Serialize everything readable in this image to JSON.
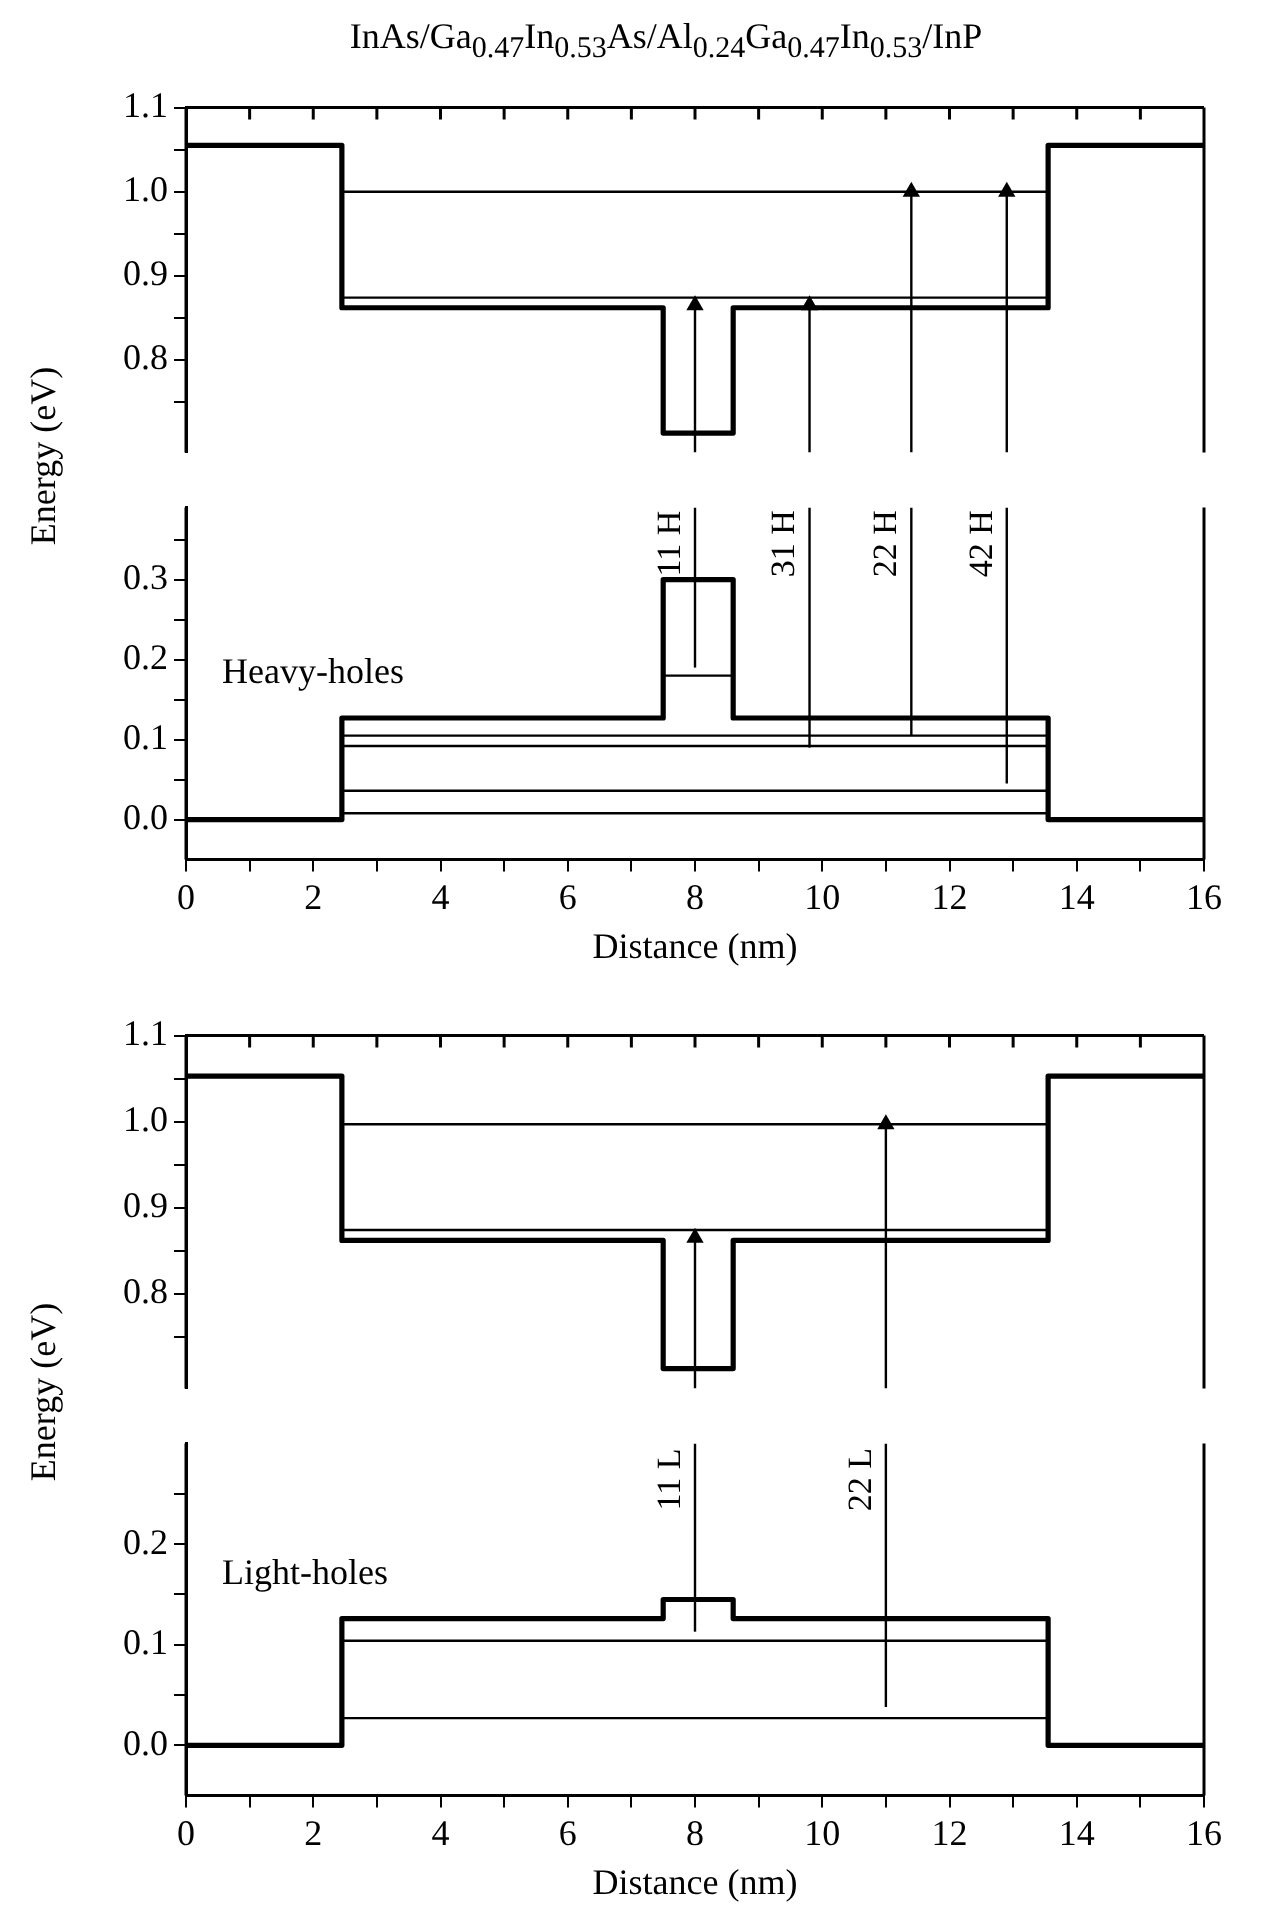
{
  "chart_data": [
    {
      "type": "line",
      "title": "InAs/Ga$_{0.47}$In$_{0.53}$As/Al$_{0.24}$Ga$_{0.47}$In$_{0.53}$/InP",
      "ylabel": "Energy (eV)",
      "xlim": [
        0,
        16
      ],
      "xticks": [
        0,
        {
          "value": 1,
          "label": null
        },
        2,
        {
          "value": 3,
          "label": null
        },
        4,
        {
          "value": 5,
          "label": null
        },
        6,
        {
          "value": 7,
          "label": null
        },
        8,
        {
          "value": 9,
          "label": null
        },
        10,
        {
          "value": 11,
          "label": null
        },
        12,
        {
          "value": 13,
          "label": null
        },
        14,
        {
          "value": 15,
          "label": null
        },
        16
      ],
      "ylim": [
        0.69,
        1.1
      ],
      "yticks": [
        {
          "value": 0.75,
          "label": null
        },
        0.8,
        {
          "value": 0.85,
          "label": null
        },
        0.9,
        {
          "value": 0.95,
          "label": null
        },
        {
          "value": 1,
          "label": "1.0"
        },
        {
          "value": 1.05,
          "label": null
        },
        1.1
      ],
      "tick_labels": "y",
      "grid": false,
      "marker": "none",
      "series": [
        {
          "color": "#000000",
          "x": [
            0,
            2.45,
            2.45,
            7.5,
            7.5,
            8.6,
            8.6,
            13.55,
            13.55,
            16
          ],
          "values": [
            1.055,
            1.055,
            0.862,
            0.862,
            0.713,
            0.713,
            0.862,
            0.862,
            1.055,
            1.055
          ]
        },
        {
          "color": "#000000",
          "x": [
            2.45,
            13.55
          ],
          "values": [
            1.0,
            1.0
          ]
        },
        {
          "color": "#000000",
          "x": [
            2.45,
            13.55
          ],
          "values": [
            0.874,
            0.874
          ]
        },
        {
          "color": "#000000",
          "marker": "triangle",
          "x": [
            8,
            8
          ],
          "values": [
            0.69,
            0.865
          ]
        },
        {
          "color": "#000000",
          "marker": "triangle",
          "x": [
            9.8,
            9.8
          ],
          "values": [
            0.69,
            0.865
          ]
        },
        {
          "color": "#000000",
          "marker": "triangle",
          "x": [
            11.4,
            11.4
          ],
          "values": [
            0.69,
            1.0
          ]
        },
        {
          "color": "#000000",
          "marker": "triangle",
          "x": [
            12.9,
            12.9
          ],
          "values": [
            0.69,
            1.0
          ]
        }
      ]
    },
    {
      "type": "line",
      "xlabel": "Distance (nm)",
      "xlim": [
        0,
        16
      ],
      "xticks": [
        0,
        {
          "value": 1,
          "label": null
        },
        2,
        {
          "value": 3,
          "label": null
        },
        4,
        {
          "value": 5,
          "label": null
        },
        6,
        {
          "value": 7,
          "label": null
        },
        8,
        {
          "value": 9,
          "label": null
        },
        10,
        {
          "value": 11,
          "label": null
        },
        12,
        {
          "value": 13,
          "label": null
        },
        14,
        {
          "value": 15,
          "label": null
        },
        16
      ],
      "ylim": [
        -0.05,
        0.39
      ],
      "yticks": [
        {
          "value": 0,
          "label": "0.0"
        },
        {
          "value": 0.05,
          "label": null
        },
        0.1,
        {
          "value": 0.15,
          "label": null
        },
        0.2,
        {
          "value": 0.25,
          "label": null
        },
        0.3,
        {
          "value": 0.35,
          "label": null
        }
      ],
      "grid": false,
      "marker": "none",
      "annotations": [
        "Heavy-holes",
        "11 H",
        "31 H",
        "22 H",
        "42 H"
      ],
      "series": [
        {
          "color": "#000000",
          "x": [
            0,
            2.45,
            2.45,
            7.5,
            7.5,
            8.6,
            8.6,
            13.55,
            13.55,
            16
          ],
          "values": [
            0,
            0,
            0.127,
            0.127,
            0.3,
            0.3,
            0.127,
            0.127,
            0,
            0
          ]
        },
        {
          "color": "#000000",
          "x": [
            7.5,
            8.6
          ],
          "values": [
            0.18,
            0.18
          ]
        },
        {
          "color": "#000000",
          "x": [
            2.45,
            13.55
          ],
          "values": [
            0.105,
            0.105
          ]
        },
        {
          "color": "#000000",
          "x": [
            2.45,
            13.55
          ],
          "values": [
            0.092,
            0.092
          ]
        },
        {
          "color": "#000000",
          "x": [
            2.45,
            13.55
          ],
          "values": [
            0.036,
            0.036
          ]
        },
        {
          "color": "#000000",
          "x": [
            2.45,
            13.55
          ],
          "values": [
            0.008,
            0.008
          ]
        },
        {
          "color": "#000000",
          "x": [
            8,
            8
          ],
          "values": [
            0.19,
            0.39
          ]
        },
        {
          "color": "#000000",
          "x": [
            9.8,
            9.8
          ],
          "values": [
            0.09,
            0.39
          ]
        },
        {
          "color": "#000000",
          "x": [
            11.4,
            11.4
          ],
          "values": [
            0.105,
            0.39
          ]
        },
        {
          "color": "#000000",
          "x": [
            12.9,
            12.9
          ],
          "values": [
            0.045,
            0.39
          ]
        }
      ]
    },
    {
      "type": "line",
      "ylabel": "Energy (eV)",
      "xlim": [
        0,
        16
      ],
      "xticks": [
        0,
        {
          "value": 1,
          "label": null
        },
        2,
        {
          "value": 3,
          "label": null
        },
        4,
        {
          "value": 5,
          "label": null
        },
        6,
        {
          "value": 7,
          "label": null
        },
        8,
        {
          "value": 9,
          "label": null
        },
        10,
        {
          "value": 11,
          "label": null
        },
        12,
        {
          "value": 13,
          "label": null
        },
        14,
        {
          "value": 15,
          "label": null
        },
        16
      ],
      "ylim": [
        0.69,
        1.1
      ],
      "yticks": [
        {
          "value": 0.75,
          "label": null
        },
        0.8,
        {
          "value": 0.85,
          "label": null
        },
        0.9,
        {
          "value": 0.95,
          "label": null
        },
        {
          "value": 1,
          "label": "1.0"
        },
        {
          "value": 1.05,
          "label": null
        },
        1.1
      ],
      "tick_labels": "y",
      "grid": false,
      "marker": "none",
      "series": [
        {
          "color": "#000000",
          "x": [
            0,
            2.45,
            2.45,
            7.5,
            7.5,
            8.6,
            8.6,
            13.55,
            13.55,
            16
          ],
          "values": [
            1.053,
            1.053,
            0.862,
            0.862,
            0.713,
            0.713,
            0.862,
            0.862,
            1.053,
            1.053
          ]
        },
        {
          "color": "#000000",
          "x": [
            2.45,
            13.55
          ],
          "values": [
            0.997,
            0.997
          ]
        },
        {
          "color": "#000000",
          "x": [
            2.45,
            13.55
          ],
          "values": [
            0.874,
            0.874
          ]
        },
        {
          "color": "#000000",
          "marker": "triangle",
          "x": [
            8,
            8
          ],
          "values": [
            0.69,
            0.865
          ]
        },
        {
          "color": "#000000",
          "marker": "triangle",
          "x": [
            11,
            11
          ],
          "values": [
            0.69,
            0.997
          ]
        }
      ]
    },
    {
      "type": "line",
      "xlabel": "Distance (nm)",
      "xlim": [
        0,
        16
      ],
      "xticks": [
        0,
        {
          "value": 1,
          "label": null
        },
        2,
        {
          "value": 3,
          "label": null
        },
        4,
        {
          "value": 5,
          "label": null
        },
        6,
        {
          "value": 7,
          "label": null
        },
        8,
        {
          "value": 9,
          "label": null
        },
        10,
        {
          "value": 11,
          "label": null
        },
        12,
        {
          "value": 13,
          "label": null
        },
        14,
        {
          "value": 15,
          "label": null
        },
        16
      ],
      "ylim": [
        -0.05,
        0.3
      ],
      "yticks": [
        {
          "value": 0,
          "label": "0.0"
        },
        {
          "value": 0.05,
          "label": null
        },
        0.1,
        {
          "value": 0.15,
          "label": null
        },
        0.2,
        {
          "value": 0.25,
          "label": null
        }
      ],
      "grid": false,
      "marker": "none",
      "annotations": [
        "Light-holes",
        "11 L",
        "22 L"
      ],
      "series": [
        {
          "color": "#000000",
          "x": [
            0,
            2.45,
            2.45,
            7.5,
            7.5,
            8.6,
            8.6,
            13.55,
            13.55,
            16
          ],
          "values": [
            0,
            0,
            0.126,
            0.126,
            0.145,
            0.145,
            0.126,
            0.126,
            0,
            0
          ]
        },
        {
          "color": "#000000",
          "x": [
            2.45,
            13.55
          ],
          "values": [
            0.104,
            0.104
          ]
        },
        {
          "color": "#000000",
          "x": [
            2.45,
            13.55
          ],
          "values": [
            0.027,
            0.027
          ]
        },
        {
          "color": "#000000",
          "x": [
            8,
            8
          ],
          "values": [
            0.113,
            0.3
          ]
        },
        {
          "color": "#000000",
          "x": [
            11,
            11
          ],
          "values": [
            0.038,
            0.3
          ]
        }
      ]
    }
  ]
}
